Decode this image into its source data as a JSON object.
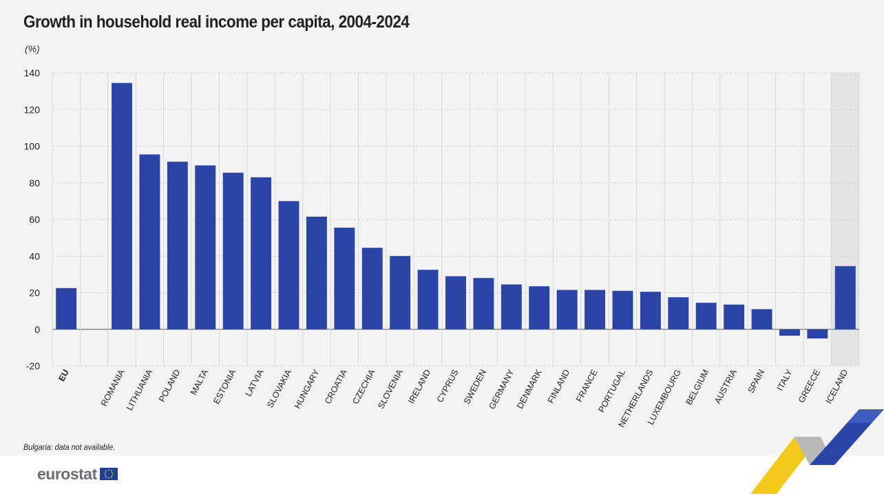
{
  "header": {
    "title": "Growth in household real income per capita, 2004-2024",
    "unit": "(%)"
  },
  "footer": {
    "note": "Bulgaria: data not available.",
    "logo_text": "eurostat"
  },
  "colors": {
    "bar": "#2a44a8",
    "background": "#f3f3f3",
    "highlight_band": "#e3e3e3",
    "grid": "#c8c8c8",
    "accent_yellow": "#f2c400",
    "accent_blue": "#2a44a8"
  },
  "chart_data": {
    "type": "bar",
    "title": "Growth in household real income per capita, 2004-2024",
    "ylabel": "(%)",
    "xlabel": "",
    "ylim": [
      -20,
      140
    ],
    "yticks": [
      -20,
      0,
      20,
      40,
      60,
      80,
      100,
      120,
      140
    ],
    "grid": true,
    "legend": "none",
    "categories": [
      "EU",
      "ROMANIA",
      "LITHUANIA",
      "POLAND",
      "MALTA",
      "ESTONIA",
      "LATVIA",
      "SLOVAKIA",
      "HUNGARY",
      "CROATIA",
      "CZECHIA",
      "SLOVENIA",
      "IRELAND",
      "CYPRUS",
      "SWEDEN",
      "GERMANY",
      "DENMARK",
      "FINLAND",
      "FRANCE",
      "PORTUGAL",
      "NETHERLANDS",
      "LUXEMBOURG",
      "BELGIUM",
      "AUSTRIA",
      "SPAIN",
      "ITALY",
      "GREECE",
      "ICELAND"
    ],
    "values": [
      22.5,
      134.5,
      95.5,
      91.5,
      89.5,
      85.5,
      83,
      70,
      61.5,
      55.5,
      44.5,
      40,
      32.5,
      29,
      28,
      24.5,
      23.5,
      21.5,
      21.5,
      21,
      20.5,
      17.5,
      14.5,
      13.5,
      11,
      -3.5,
      -5,
      34.5
    ],
    "bold_categories": [
      "EU"
    ],
    "highlighted_categories": [
      "ICELAND"
    ]
  }
}
